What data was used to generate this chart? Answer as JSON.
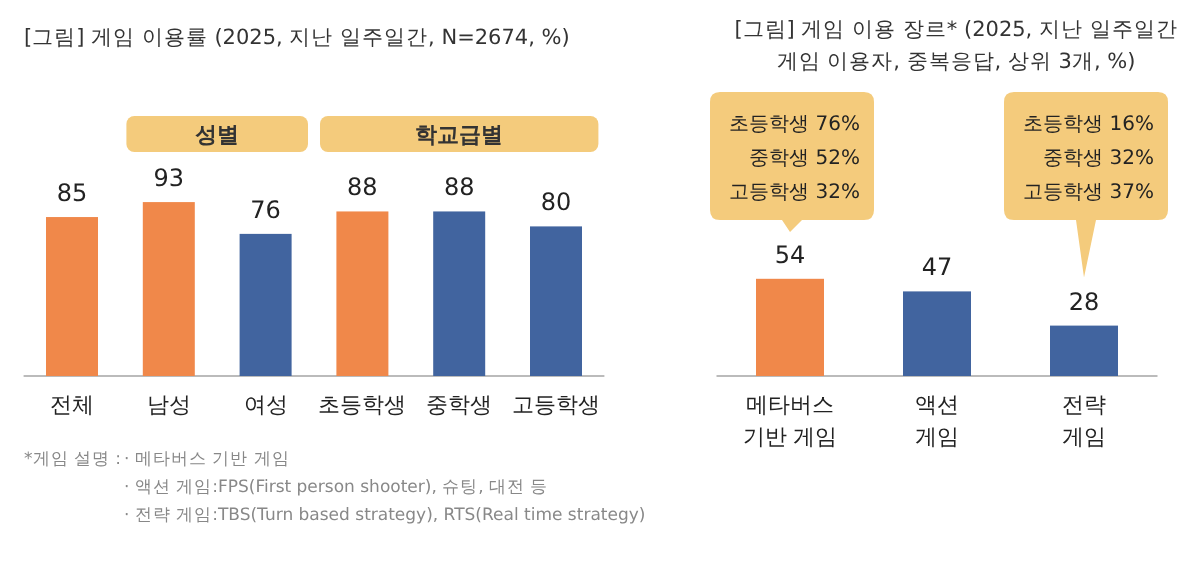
{
  "chart_data": [
    {
      "type": "bar",
      "title": "[그림] 게임 이용률 (2025, 지난 일주일간, N=2674, %)",
      "categories": [
        "전체",
        "남성",
        "여성",
        "초등학생",
        "중학생",
        "고등학생"
      ],
      "values": [
        85,
        93,
        76,
        88,
        88,
        80
      ],
      "colors": [
        "#f0884a",
        "#f0884a",
        "#41649f",
        "#f0884a",
        "#41649f",
        "#41649f"
      ],
      "data_labels": true,
      "annotations": [
        "성별",
        "학교급별",
        "*게임 설명 :",
        "· 메타버스 기반 게임",
        "· 액션 게임:FPS(First person shooter), 슈팅, 대전 등",
        "· 전략 게임:TBS(Turn based strategy), RTS(Real time strategy)"
      ]
    },
    {
      "type": "bar",
      "title": "[그림] 게임 이용 장르* (2025, 지난 일주일간\n게임 이용자, 중복응답, 상위 3개, %)",
      "categories": [
        "메타버스\n기반 게임",
        "액션\n게임",
        "전략\n게임"
      ],
      "values": [
        54,
        47,
        28
      ],
      "colors": [
        "#f0884a",
        "#41649f",
        "#41649f"
      ],
      "data_labels": true,
      "annotations": [
        "초등학생 76%\n중학생 52%\n고등학생 32%",
        "초등학생 16%\n중학생 32%\n고등학생 37%"
      ]
    }
  ]
}
